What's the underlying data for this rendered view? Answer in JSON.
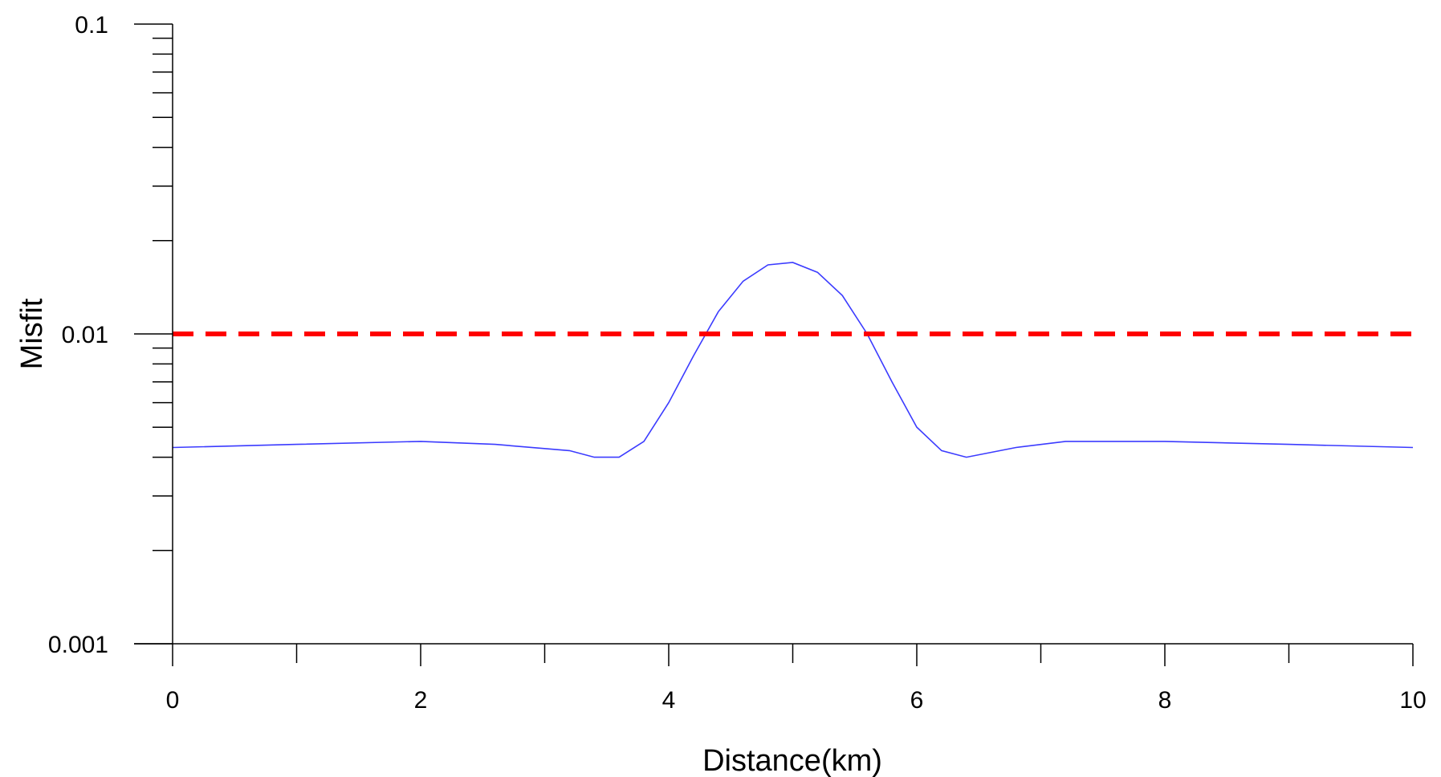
{
  "chart_data": {
    "type": "line",
    "xlabel": "Distance(km)",
    "ylabel": "Misfit",
    "xlim": [
      0,
      10
    ],
    "ylim": [
      0.001,
      0.1
    ],
    "y_scale": "log",
    "x_ticks": [
      0,
      2,
      4,
      6,
      8,
      10
    ],
    "x_tick_labels": [
      "0",
      "2",
      "4",
      "6",
      "8",
      "10"
    ],
    "x_minor_ticks": [
      1,
      3,
      5,
      7,
      9
    ],
    "y_ticks": [
      0.001,
      0.01,
      0.1
    ],
    "y_tick_labels": [
      "0.001",
      "0.01",
      "0.1"
    ],
    "grid": false,
    "series": [
      {
        "color": "#3b3bff",
        "style": "solid",
        "x": [
          0,
          1.0,
          2.0,
          2.6,
          3.2,
          3.4,
          3.6,
          3.8,
          4.0,
          4.2,
          4.4,
          4.6,
          4.8,
          5.0,
          5.2,
          5.4,
          5.6,
          5.8,
          6.0,
          6.2,
          6.4,
          6.8,
          7.2,
          8.0,
          9.0,
          10.0
        ],
        "y": [
          0.0043,
          0.0044,
          0.0045,
          0.0044,
          0.0042,
          0.004,
          0.004,
          0.0045,
          0.006,
          0.0085,
          0.0118,
          0.0148,
          0.0167,
          0.017,
          0.0158,
          0.0133,
          0.01,
          0.007,
          0.005,
          0.0042,
          0.004,
          0.0043,
          0.0045,
          0.0045,
          0.0044,
          0.0043
        ]
      },
      {
        "color": "#ff0000",
        "style": "dashed",
        "x": [
          0,
          10
        ],
        "y": [
          0.01,
          0.01
        ]
      }
    ]
  }
}
